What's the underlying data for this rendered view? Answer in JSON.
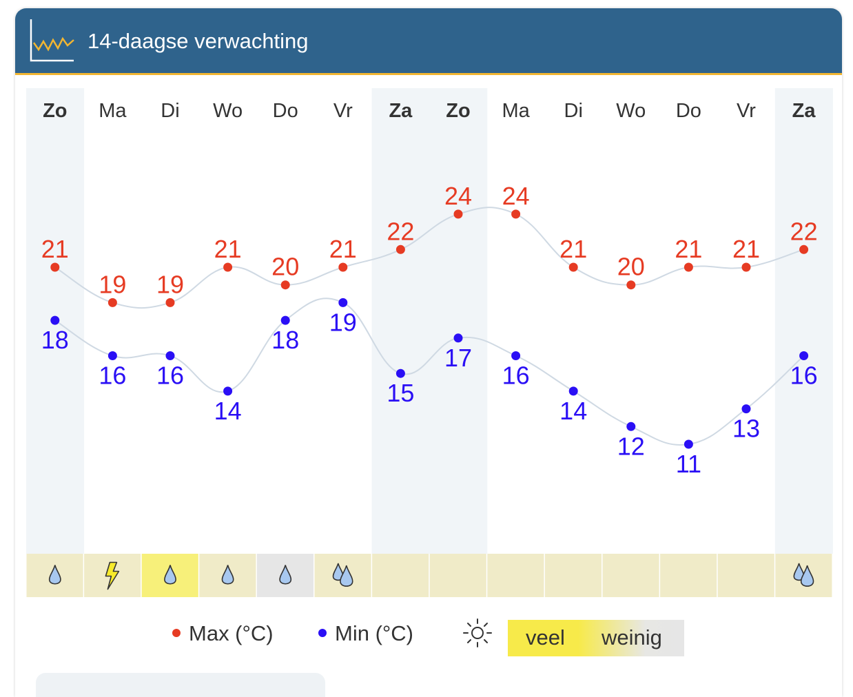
{
  "header": {
    "title": "14-daagse verwachting",
    "icon": "temperature-graph-icon"
  },
  "days": [
    "Zo",
    "Ma",
    "Di",
    "Wo",
    "Do",
    "Vr",
    "Za",
    "Zo",
    "Ma",
    "Di",
    "Wo",
    "Do",
    "Vr",
    "Za"
  ],
  "weekend": [
    true,
    false,
    false,
    false,
    false,
    false,
    true,
    true,
    false,
    false,
    false,
    false,
    false,
    true
  ],
  "chart_data": {
    "type": "line",
    "x": [
      "Zo",
      "Ma",
      "Di",
      "Wo",
      "Do",
      "Vr",
      "Za",
      "Zo",
      "Ma",
      "Di",
      "Wo",
      "Do",
      "Vr",
      "Za"
    ],
    "series": [
      {
        "name": "Max (°C)",
        "color": "#e63b23",
        "values": [
          21,
          19,
          19,
          21,
          20,
          21,
          22,
          24,
          24,
          21,
          20,
          21,
          21,
          22
        ]
      },
      {
        "name": "Min (°C)",
        "color": "#2a0ff5",
        "values": [
          18,
          16,
          16,
          14,
          18,
          19,
          15,
          17,
          16,
          14,
          12,
          11,
          13,
          16
        ]
      }
    ],
    "line_color": "#cfd9e3",
    "grid": false
  },
  "precipitation": {
    "icons": [
      "drop-icon",
      "lightning-icon",
      "drop-icon",
      "drop-icon",
      "drop-icon",
      "double-drop-icon",
      "",
      "",
      "",
      "",
      "",
      "",
      "",
      "double-drop-icon"
    ],
    "sunshine": [
      "low",
      "low",
      "high",
      "low",
      "none",
      "low",
      "low",
      "low",
      "low",
      "low",
      "low",
      "low",
      "low",
      "low"
    ]
  },
  "legend": {
    "max_label": "Max (°C)",
    "min_label": "Min (°C)",
    "max_color": "#e63b23",
    "min_color": "#2a0ff5",
    "sun_icon": "sun-icon",
    "veel": "veel",
    "weinig": "weinig"
  },
  "colors": {
    "header_bg": "#2f638c",
    "header_border": "#f2b632",
    "weekend_bg": "#f1f5f8",
    "sun_low": "#f0ebc8",
    "sun_high": "#f7f07a",
    "sun_none": "#e6e6e6",
    "drop_fill": "#a8c8ef",
    "lightning_fill": "#f7ea2a"
  }
}
